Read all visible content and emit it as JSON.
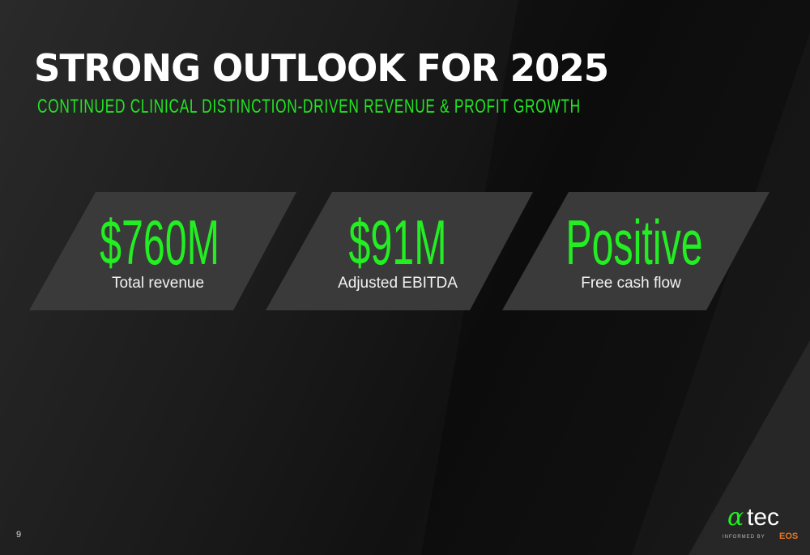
{
  "slide": {
    "title": "STRONG OUTLOOK FOR 2025",
    "subtitle": "CONTINUED CLINICAL DISTINCTION-DRIVEN REVENUE & PROFIT GROWTH",
    "page_number": "9",
    "accent_color": "#22ee22"
  },
  "cards": [
    {
      "value": "$760M",
      "label": "Total revenue"
    },
    {
      "value": "$91M",
      "label": "Adjusted EBITDA"
    },
    {
      "value": "Positive",
      "label": "Free cash flow"
    }
  ],
  "logo": {
    "brand": "atec",
    "tagline": "INFORMED BY",
    "sub_brand": "EOS"
  }
}
